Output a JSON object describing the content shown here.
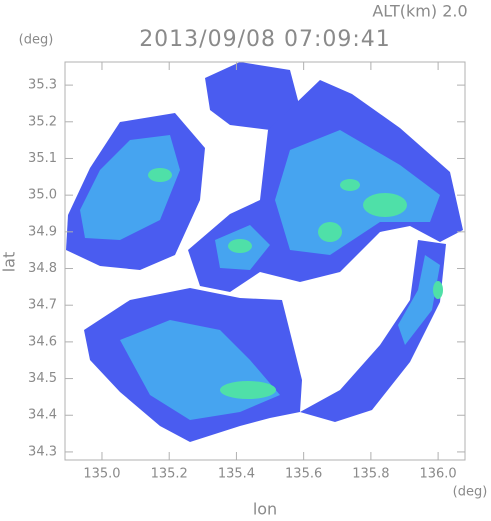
{
  "chart_data": {
    "type": "radar-map",
    "title": "2013/09/08 07:09:41",
    "subtitle": "ALT(km) 2.0",
    "x_label": "lon",
    "y_label": "lat",
    "x_unit": "(deg)",
    "y_unit": "(deg)",
    "xlim": [
      134.89,
      136.08
    ],
    "ylim": [
      34.278,
      35.363
    ],
    "xticks": [
      {
        "value": 135,
        "label": "135.0"
      },
      135.2,
      135.4,
      135.6,
      135.8,
      {
        "value": 136,
        "label": "136.0"
      }
    ],
    "yticks": [
      34.3,
      34.4,
      34.5,
      34.6,
      34.7,
      34.8,
      34.9,
      {
        "value": 35,
        "label": "35.0"
      },
      35.1,
      35.2,
      35.3
    ]
  }
}
